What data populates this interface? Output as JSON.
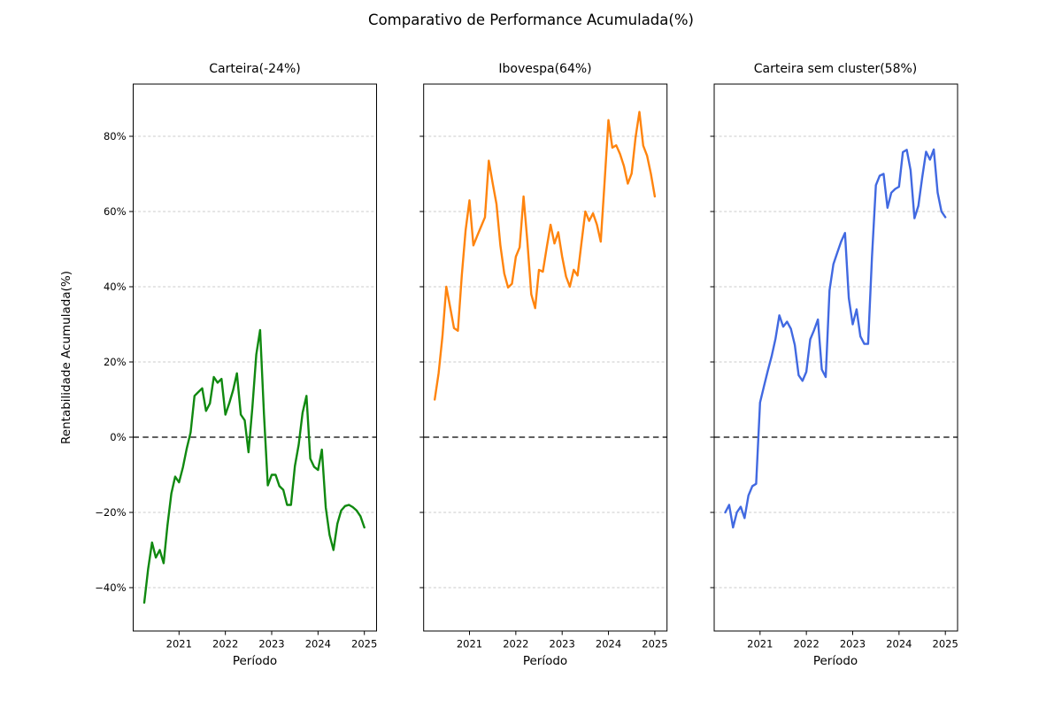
{
  "figure": {
    "title": "Comparativo de Performance Acumulada(%)",
    "background_color": "#ffffff"
  },
  "chart_data": {
    "type": "line",
    "layout": "3 horizontal subplots with shared y-axis, horizontal dashed grid, black dashed zero line",
    "title": "Comparativo de Performance Acumulada(%)",
    "xlabel": "Período",
    "ylabel": "Rentabilidade Acumulada(%)",
    "xtick_labels": [
      "2021",
      "2022",
      "2023",
      "2024",
      "2025"
    ],
    "ytick_labels": [
      "80%",
      "60%",
      "40%",
      "20%",
      "0%",
      "−20%",
      "−40%"
    ],
    "ytick_values": [
      80,
      60,
      40,
      20,
      0,
      -20,
      -40
    ],
    "grid": true,
    "zero_reference_line": "black dashed at 0%",
    "x_months": [
      "2020-04",
      "2020-05",
      "2020-06",
      "2020-07",
      "2020-08",
      "2020-09",
      "2020-10",
      "2020-11",
      "2020-12",
      "2021-01",
      "2021-02",
      "2021-03",
      "2021-04",
      "2021-05",
      "2021-06",
      "2021-07",
      "2021-08",
      "2021-09",
      "2021-10",
      "2021-11",
      "2021-12",
      "2022-01",
      "2022-02",
      "2022-03",
      "2022-04",
      "2022-05",
      "2022-06",
      "2022-07",
      "2022-08",
      "2022-09",
      "2022-10",
      "2022-11",
      "2022-12",
      "2023-01",
      "2023-02",
      "2023-03",
      "2023-04",
      "2023-05",
      "2023-06",
      "2023-07",
      "2023-08",
      "2023-09",
      "2023-10",
      "2023-11",
      "2023-12",
      "2024-01",
      "2024-02",
      "2024-03",
      "2024-04",
      "2024-05",
      "2024-06",
      "2024-07",
      "2024-08",
      "2024-09",
      "2024-10",
      "2024-11",
      "2024-12",
      "2025-01"
    ],
    "subplots": [
      {
        "title": "Carteira(-24%)",
        "series_name": "Carteira",
        "final_return_pct": -24,
        "color": "#108910",
        "values": [
          -44,
          -35,
          -28,
          -32,
          -30,
          -33.5,
          -23.5,
          -15,
          -10.5,
          -12,
          -8,
          -3,
          1.3,
          11,
          12,
          13,
          7,
          9,
          16,
          14.5,
          15.5,
          6,
          9,
          12.5,
          17,
          6,
          4.5,
          -4,
          8,
          22,
          28.5,
          6,
          -12.8,
          -10,
          -10,
          -13,
          -14,
          -18,
          -18,
          -7.7,
          -2,
          6.5,
          11,
          -5.7,
          -7.9,
          -8.7,
          -3.3,
          -18.7,
          -26,
          -30,
          -23,
          -19.5,
          -18.3,
          -18,
          -18.6,
          -19.5,
          -21,
          -24
        ]
      },
      {
        "title": "Ibovespa(64%)",
        "series_name": "Ibovespa",
        "final_return_pct": 64,
        "color": "#ff840e",
        "values": [
          10,
          17,
          27,
          40,
          34.5,
          29,
          28.3,
          43,
          55,
          63,
          51,
          53.5,
          56,
          58.5,
          73.5,
          67.5,
          62,
          51,
          43.5,
          39.8,
          40.8,
          48,
          50.5,
          64,
          52,
          38,
          34.3,
          44.5,
          44,
          50.5,
          56.5,
          51.5,
          54.5,
          48,
          42.7,
          40,
          44.5,
          43,
          51.6,
          60,
          57.5,
          59.5,
          56.5,
          52,
          68,
          84.3,
          77,
          77.6,
          75.3,
          72.1,
          67.4,
          70.1,
          79.6,
          86.5,
          77.5,
          74.8,
          70,
          64
        ]
      },
      {
        "title": "Carteira sem cluster(58%)",
        "series_name": "Carteira sem cluster",
        "final_return_pct": 58,
        "color": "#4169e1",
        "values": [
          -20,
          -18,
          -24,
          -20,
          -18.5,
          -21.5,
          -15.5,
          -13,
          -12.4,
          9.2,
          13.5,
          17.6,
          21.5,
          26.2,
          32.4,
          29.4,
          30.7,
          28.8,
          24.5,
          16.5,
          15,
          17.4,
          26,
          28.5,
          31.3,
          18,
          16,
          39,
          46,
          49,
          52,
          54.3,
          37,
          30,
          34,
          26.8,
          24.8,
          24.8,
          48,
          67,
          69.5,
          70,
          61,
          65,
          66,
          66.6,
          75.8,
          76.4,
          71,
          58.2,
          61.5,
          69,
          75.9,
          73.8,
          76.5,
          65,
          60,
          58.5
        ]
      }
    ]
  }
}
